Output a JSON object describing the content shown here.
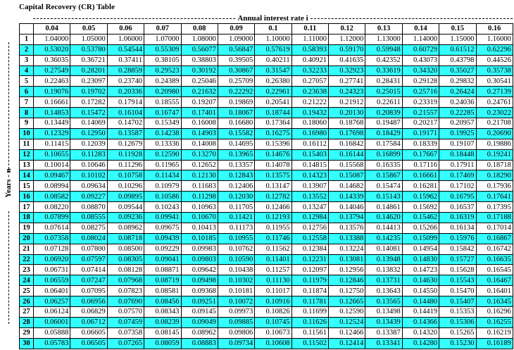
{
  "title": "Capital Recovery (CR) Table",
  "column_group": "Annual interest rate i",
  "row_group": "Years - n",
  "table": {
    "columns": [
      "0.04",
      "0.05",
      "0.06",
      "0.07",
      "0.08",
      "0.09",
      "0.1",
      "0.11",
      "0.12",
      "0.13",
      "0.14",
      "0.15",
      "0.16"
    ],
    "rows": [
      [
        "1",
        "1.04000",
        "1.05000",
        "1.06000",
        "1.07000",
        "1.08000",
        "1.09000",
        "1.10000",
        "1.11000",
        "1.12000",
        "1.13000",
        "1.14000",
        "1.15000",
        "1.16000"
      ],
      [
        "2",
        "0.53020",
        "0.53780",
        "0.54544",
        "0.55309",
        "0.56077",
        "0.56847",
        "0.57619",
        "0.58393",
        "0.59170",
        "0.59948",
        "0.60729",
        "0.61512",
        "0.62296"
      ],
      [
        "3",
        "0.36035",
        "0.36721",
        "0.37411",
        "0.38105",
        "0.38803",
        "0.39505",
        "0.40211",
        "0.40921",
        "0.41635",
        "0.42352",
        "0.43073",
        "0.43798",
        "0.44526"
      ],
      [
        "4",
        "0.27549",
        "0.28201",
        "0.28859",
        "0.29523",
        "0.30192",
        "0.30867",
        "0.31547",
        "0.32233",
        "0.32923",
        "0.33619",
        "0.34320",
        "0.35027",
        "0.35738"
      ],
      [
        "5",
        "0.22463",
        "0.23097",
        "0.23740",
        "0.24389",
        "0.25046",
        "0.25709",
        "0.26380",
        "0.27057",
        "0.27741",
        "0.28431",
        "0.29128",
        "0.29832",
        "0.30541"
      ],
      [
        "6",
        "0.19076",
        "0.19702",
        "0.20336",
        "0.20980",
        "0.21632",
        "0.22292",
        "0.22961",
        "0.23638",
        "0.24323",
        "0.25015",
        "0.25716",
        "0.26424",
        "0.27139"
      ],
      [
        "7",
        "0.16661",
        "0.17282",
        "0.17914",
        "0.18555",
        "0.19207",
        "0.19869",
        "0.20541",
        "0.21222",
        "0.21912",
        "0.22611",
        "0.23319",
        "0.24036",
        "0.24761"
      ],
      [
        "8",
        "0.14853",
        "0.15472",
        "0.16104",
        "0.16747",
        "0.17401",
        "0.18067",
        "0.18744",
        "0.19432",
        "0.20130",
        "0.20839",
        "0.21557",
        "0.22285",
        "0.23022"
      ],
      [
        "9",
        "0.13449",
        "0.14069",
        "0.14702",
        "0.15349",
        "0.16008",
        "0.16680",
        "0.17364",
        "0.18060",
        "0.18768",
        "0.19487",
        "0.20217",
        "0.20957",
        "0.21708"
      ],
      [
        "10",
        "0.12329",
        "0.12950",
        "0.13587",
        "0.14238",
        "0.14903",
        "0.15582",
        "0.16275",
        "0.16980",
        "0.17698",
        "0.18429",
        "0.19171",
        "0.19925",
        "0.20690"
      ],
      [
        "11",
        "0.11415",
        "0.12039",
        "0.12679",
        "0.13336",
        "0.14008",
        "0.14695",
        "0.15396",
        "0.16112",
        "0.16842",
        "0.17584",
        "0.18339",
        "0.19107",
        "0.19886"
      ],
      [
        "12",
        "0.10655",
        "0.11283",
        "0.11928",
        "0.12590",
        "0.13270",
        "0.13965",
        "0.14676",
        "0.15403",
        "0.16144",
        "0.16899",
        "0.17667",
        "0.18448",
        "0.19241"
      ],
      [
        "13",
        "0.10014",
        "0.10646",
        "0.11296",
        "0.11965",
        "0.12652",
        "0.13357",
        "0.14078",
        "0.14815",
        "0.15568",
        "0.16335",
        "0.17116",
        "0.17911",
        "0.18718"
      ],
      [
        "14",
        "0.09467",
        "0.10102",
        "0.10758",
        "0.11434",
        "0.12130",
        "0.12843",
        "0.13575",
        "0.14323",
        "0.15087",
        "0.15867",
        "0.16661",
        "0.17469",
        "0.18290"
      ],
      [
        "15",
        "0.08994",
        "0.09634",
        "0.10296",
        "0.10979",
        "0.11683",
        "0.12406",
        "0.13147",
        "0.13907",
        "0.14682",
        "0.15474",
        "0.16281",
        "0.17102",
        "0.17936"
      ],
      [
        "16",
        "0.08582",
        "0.09227",
        "0.09895",
        "0.10586",
        "0.11298",
        "0.12030",
        "0.12782",
        "0.13552",
        "0.14339",
        "0.15143",
        "0.15962",
        "0.16795",
        "0.17641"
      ],
      [
        "17",
        "0.08220",
        "0.08870",
        "0.09544",
        "0.10243",
        "0.10963",
        "0.11705",
        "0.12466",
        "0.13247",
        "0.14046",
        "0.14861",
        "0.15692",
        "0.16537",
        "0.17395"
      ],
      [
        "18",
        "0.07899",
        "0.08555",
        "0.09236",
        "0.09941",
        "0.10670",
        "0.11421",
        "0.12193",
        "0.12984",
        "0.13794",
        "0.14620",
        "0.15462",
        "0.16319",
        "0.17188"
      ],
      [
        "19",
        "0.07614",
        "0.08275",
        "0.08962",
        "0.09675",
        "0.10413",
        "0.11173",
        "0.11955",
        "0.12756",
        "0.13576",
        "0.14413",
        "0.15266",
        "0.16134",
        "0.17014"
      ],
      [
        "20",
        "0.07358",
        "0.08024",
        "0.08718",
        "0.09439",
        "0.10185",
        "0.10955",
        "0.11746",
        "0.12558",
        "0.13388",
        "0.14235",
        "0.15099",
        "0.15976",
        "0.16867"
      ],
      [
        "21",
        "0.07128",
        "0.07800",
        "0.08500",
        "0.09229",
        "0.09983",
        "0.10762",
        "0.11562",
        "0.12384",
        "0.13224",
        "0.14081",
        "0.14954",
        "0.15842",
        "0.16742"
      ],
      [
        "22",
        "0.06920",
        "0.07597",
        "0.08305",
        "0.09041",
        "0.09803",
        "0.10590",
        "0.11401",
        "0.12231",
        "0.13081",
        "0.13948",
        "0.14830",
        "0.15727",
        "0.16635"
      ],
      [
        "23",
        "0.06731",
        "0.07414",
        "0.08128",
        "0.08871",
        "0.09642",
        "0.10438",
        "0.11257",
        "0.12097",
        "0.12956",
        "0.13832",
        "0.14723",
        "0.15628",
        "0.16545"
      ],
      [
        "24",
        "0.06559",
        "0.07247",
        "0.07968",
        "0.08719",
        "0.09498",
        "0.10302",
        "0.11130",
        "0.11979",
        "0.12846",
        "0.13731",
        "0.14630",
        "0.15543",
        "0.16467"
      ],
      [
        "25",
        "0.06401",
        "0.07095",
        "0.07823",
        "0.08581",
        "0.09368",
        "0.10181",
        "0.11017",
        "0.11874",
        "0.12750",
        "0.13643",
        "0.14550",
        "0.15470",
        "0.16401"
      ],
      [
        "26",
        "0.06257",
        "0.06956",
        "0.07690",
        "0.08456",
        "0.09251",
        "0.10072",
        "0.10916",
        "0.11781",
        "0.12665",
        "0.13565",
        "0.14480",
        "0.15407",
        "0.16345"
      ],
      [
        "27",
        "0.06124",
        "0.06829",
        "0.07570",
        "0.08343",
        "0.09145",
        "0.09973",
        "0.10826",
        "0.11699",
        "0.12590",
        "0.13498",
        "0.14419",
        "0.15353",
        "0.16296"
      ],
      [
        "28",
        "0.06001",
        "0.06712",
        "0.07459",
        "0.08239",
        "0.09049",
        "0.09885",
        "0.10745",
        "0.11626",
        "0.12524",
        "0.13439",
        "0.14366",
        "0.15306",
        "0.16255"
      ],
      [
        "29",
        "0.05888",
        "0.06605",
        "0.07358",
        "0.08145",
        "0.08962",
        "0.09806",
        "0.10673",
        "0.11561",
        "0.12466",
        "0.13387",
        "0.14320",
        "0.15265",
        "0.16219"
      ],
      [
        "30",
        "0.05783",
        "0.06505",
        "0.07265",
        "0.08059",
        "0.08883",
        "0.09734",
        "0.10608",
        "0.11502",
        "0.12414",
        "0.13341",
        "0.14280",
        "0.15230",
        "0.16189"
      ]
    ]
  }
}
